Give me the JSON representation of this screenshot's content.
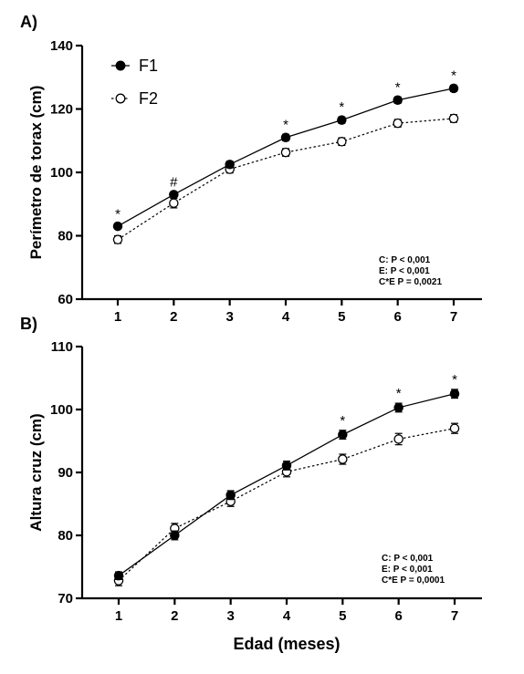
{
  "chart_data": [
    {
      "type": "line",
      "panel_label": "A)",
      "ylabel": "Perímetro de torax (cm)",
      "xlabel": "",
      "x": [
        1,
        2,
        3,
        4,
        5,
        6,
        7
      ],
      "xticks": [
        "1",
        "2",
        "3",
        "4",
        "5",
        "6",
        "7"
      ],
      "ylim": [
        60,
        140
      ],
      "yticks": [
        "60",
        "80",
        "100",
        "120",
        "140"
      ],
      "series": [
        {
          "name": "F1",
          "marker": "filled-circle",
          "line": "solid",
          "values": [
            83.0,
            93.0,
            102.5,
            111.0,
            116.5,
            122.8,
            126.5
          ],
          "err": [
            0.8,
            0.8,
            1.0,
            1.0,
            1.0,
            1.0,
            1.0
          ]
        },
        {
          "name": "F2",
          "marker": "open-circle",
          "line": "dotted",
          "values": [
            78.8,
            90.3,
            101.0,
            106.3,
            109.7,
            115.5,
            117.0
          ],
          "err": [
            1.2,
            1.5,
            1.2,
            1.2,
            1.2,
            1.2,
            1.2
          ]
        }
      ],
      "significance": [
        "*",
        "#",
        "",
        "*",
        "*",
        "*",
        "*"
      ],
      "legend": [
        "F1",
        "F2"
      ],
      "stats_text": [
        "C: P < 0,001",
        "E: P < 0,001",
        "C*E P = 0,0021"
      ]
    },
    {
      "type": "line",
      "panel_label": "B)",
      "ylabel": "Altura cruz (cm)",
      "xlabel": "Edad (meses)",
      "x": [
        1,
        2,
        3,
        4,
        5,
        6,
        7
      ],
      "xticks": [
        "1",
        "2",
        "3",
        "4",
        "5",
        "6",
        "7"
      ],
      "ylim": [
        70,
        110
      ],
      "yticks": [
        "70",
        "80",
        "90",
        "100",
        "110"
      ],
      "series": [
        {
          "name": "F1",
          "marker": "filled-circle",
          "line": "solid",
          "values": [
            73.6,
            80.0,
            86.4,
            91.1,
            96.0,
            100.3,
            102.5
          ],
          "err": [
            0.6,
            0.7,
            0.7,
            0.7,
            0.7,
            0.7,
            0.7
          ]
        },
        {
          "name": "F2",
          "marker": "open-circle",
          "line": "dotted",
          "values": [
            72.8,
            81.1,
            85.4,
            90.1,
            92.1,
            95.3,
            97.0
          ],
          "err": [
            0.8,
            0.8,
            0.8,
            0.8,
            0.8,
            0.9,
            0.8
          ]
        }
      ],
      "significance": [
        "",
        "",
        "",
        "",
        "*",
        "*",
        "*"
      ],
      "stats_text": [
        "C: P < 0,001",
        "E: P < 0,001",
        "C*E P = 0,0001"
      ]
    }
  ]
}
